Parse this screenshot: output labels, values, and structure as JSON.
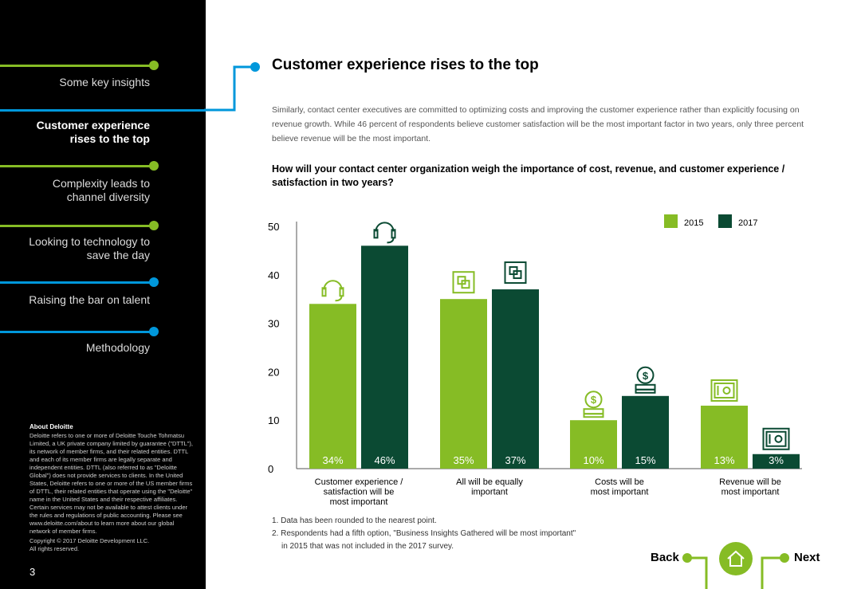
{
  "sidebar": {
    "nav": [
      {
        "label": "Some key insights",
        "line_color": "#86bc25"
      },
      {
        "label": "Customer experience rises to the top",
        "line_color": "#0097db",
        "active": true
      },
      {
        "label": "Complexity leads to channel diversity",
        "line_color": "#86bc25"
      },
      {
        "label": "Looking to technology to save the day",
        "line_color": "#86bc25"
      },
      {
        "label": "Raising the bar on talent",
        "line_color": "#0097db"
      },
      {
        "label": "Methodology",
        "line_color": "#0097db"
      }
    ],
    "about_title": "About Deloitte",
    "about_text": "Deloitte refers to one or more of Deloitte Touche Tohmatsu Limited, a UK private company limited by guarantee (\"DTTL\"), its network of member firms, and their related entities. DTTL and each of its member firms are legally separate and independent entities. DTTL (also referred to as \"Deloitte Global\") does not provide services to clients. In the United States, Deloitte refers to one or more of the US member firms of DTTL, their related entities that operate using the \"Deloitte\" name in the United States and their respective affiliates. Certain services may not be available to attest clients under the rules and regulations of public accounting. Please see www.deloitte.com/about to learn more about our global network of member firms.",
    "copyright_line1": "Copyright © 2017 Deloitte Development LLC.",
    "copyright_line2": "All rights reserved.",
    "page_number": "3"
  },
  "main": {
    "title": "Customer experience rises to the top",
    "intro": "Similarly, contact center executives are committed to optimizing costs and improving the customer experience rather than explicitly focusing on revenue growth. While 46 percent of respondents believe customer satisfaction will be the most important factor in two years, only three percent believe revenue will be the most important.",
    "question": "How will your contact center organization weigh the importance of cost, revenue, and customer experience / satisfaction in two years?",
    "footnote_1": "1. Data has been rounded to the nearest point.",
    "footnote_2a": "2. Respondents had a fifth option, \"Business Insights Gathered will be most important\"",
    "footnote_2b": "in 2015 that was not included in the 2017 survey."
  },
  "nav_buttons": {
    "back": "Back",
    "next": "Next"
  },
  "colors": {
    "green": "#86bc25",
    "dark_green": "#0b4a33",
    "blue": "#0097db"
  },
  "chart_data": {
    "type": "bar",
    "categories": [
      [
        "Customer experience /",
        "satisfaction will be",
        "most important"
      ],
      [
        "All will be equally",
        "important"
      ],
      [
        "Costs will be",
        "most important"
      ],
      [
        "Revenue will be",
        "most important"
      ]
    ],
    "category_icons": [
      "headset-icon",
      "integration-icon",
      "coin-icon",
      "safe-icon"
    ],
    "series": [
      {
        "name": "2015",
        "color": "#86bc25",
        "values": [
          34,
          35,
          10,
          13
        ],
        "labels": [
          "34%",
          "35%",
          "10%",
          "13%"
        ]
      },
      {
        "name": "2017",
        "color": "#0b4a33",
        "values": [
          46,
          37,
          15,
          3
        ],
        "labels": [
          "46%",
          "37%",
          "15%",
          "3%"
        ]
      }
    ],
    "yticks": [
      0,
      10,
      20,
      30,
      40,
      50
    ],
    "ylim": [
      0,
      50
    ],
    "legend_position": "top-right"
  }
}
